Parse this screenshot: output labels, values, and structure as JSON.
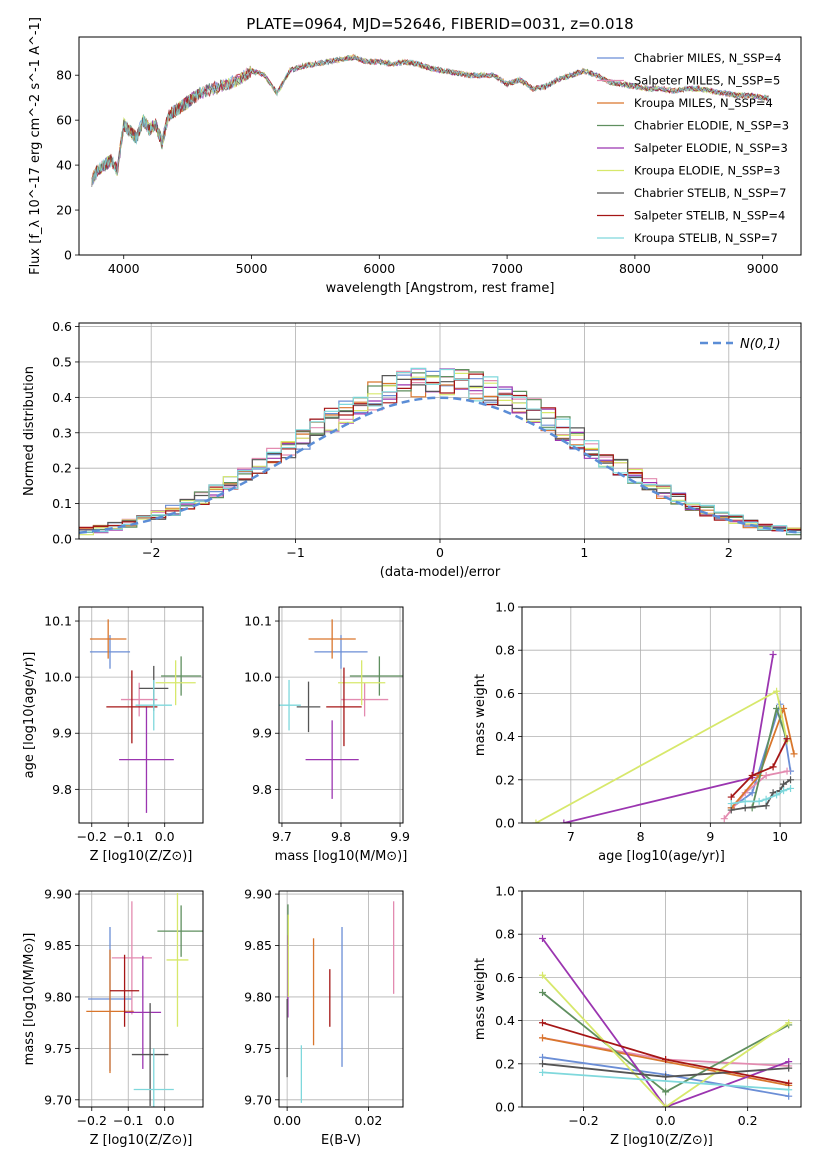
{
  "figure": {
    "title": "PLATE=0964, MJD=52646, FIBERID=0031, z=0.018"
  },
  "legend_entries": [
    "Chabrier MILES, N_SSP=4",
    "Salpeter MILES, N_SSP=5",
    "Kroupa MILES, N_SSP=4",
    "Chabrier ELODIE, N_SSP=3",
    "Salpeter ELODIE, N_SSP=3",
    "Kroupa ELODIE, N_SSP=3",
    "Chabrier STELIB, N_SSP=7",
    "Salpeter STELIB, N_SSP=4",
    "Kroupa STELIB, N_SSP=7"
  ],
  "colors": [
    "#6b8ed6",
    "#e38bb0",
    "#d9762c",
    "#5f8f5f",
    "#9b35b0",
    "#d7e86b",
    "#555555",
    "#a51616",
    "#7fd8dc"
  ],
  "chart_data": [
    {
      "id": "spectrum",
      "type": "line",
      "xlabel": "wavelength [Angstrom, rest frame]",
      "ylabel": "Flux [f_λ 10^-17 erg cm^-2 s^-1 A^-1]",
      "xlim": [
        3650,
        9300
      ],
      "ylim": [
        0,
        97
      ],
      "xticks": [
        4000,
        5000,
        6000,
        7000,
        8000,
        9000
      ],
      "yticks": [
        0,
        20,
        40,
        60,
        80
      ],
      "grid": false,
      "legend": "top-right",
      "x": [
        3750,
        3800,
        3850,
        3900,
        3950,
        4000,
        4050,
        4100,
        4150,
        4200,
        4250,
        4300,
        4350,
        4400,
        4450,
        4500,
        4550,
        4600,
        4700,
        4800,
        4900,
        5000,
        5100,
        5200,
        5300,
        5400,
        5500,
        5600,
        5700,
        5800,
        5900,
        6000,
        6100,
        6200,
        6300,
        6400,
        6500,
        6600,
        6700,
        6800,
        6900,
        7000,
        7100,
        7200,
        7300,
        7400,
        7500,
        7600,
        7700,
        7800,
        7900,
        8000,
        8100,
        8200,
        8300,
        8400,
        8500,
        8600,
        8700,
        8800,
        8900,
        9000,
        9050
      ],
      "y": [
        33,
        38,
        40,
        42,
        38,
        58,
        55,
        52,
        60,
        56,
        58,
        50,
        62,
        64,
        66,
        68,
        70,
        72,
        74,
        76,
        78,
        82,
        80,
        72,
        82,
        84,
        85,
        86,
        87,
        88,
        86,
        86,
        85,
        86,
        85,
        83,
        82,
        81,
        80,
        80,
        80,
        76,
        78,
        74,
        75,
        78,
        80,
        82,
        80,
        77,
        76,
        75,
        74,
        74,
        73,
        74,
        74,
        73,
        72,
        71,
        71,
        70,
        70
      ]
    },
    {
      "id": "residuals",
      "type": "histogram",
      "xlabel": "(data-model)/error",
      "ylabel": "Normed distribution",
      "xlim": [
        -2.5,
        2.5
      ],
      "ylim": [
        0,
        0.61
      ],
      "xticks": [
        -2,
        -1,
        0,
        1,
        2
      ],
      "yticks": [
        0.0,
        0.1,
        0.2,
        0.3,
        0.4,
        0.5,
        0.6
      ],
      "grid": true,
      "legend": "top-right",
      "series_name": "N(0,1)",
      "bin_width": 0.1,
      "bin_start": -2.5,
      "bin_count": 50
    },
    {
      "id": "age-vs-Z",
      "type": "errorbar",
      "xlabel": "Z [log10(Z/Z⊙)]",
      "ylabel": "age [log10(age/yr)]",
      "xlim": [
        -0.235,
        0.105
      ],
      "ylim": [
        9.74,
        10.125
      ],
      "xticks": [
        -0.2,
        -0.1,
        0.0
      ],
      "yticks": [
        9.8,
        9.9,
        10.0,
        10.1
      ],
      "grid": true,
      "points": [
        {
          "x": -0.15,
          "y": 10.045,
          "xerr": 0.055,
          "yerr": 0.03
        },
        {
          "x": -0.07,
          "y": 9.96,
          "xerr": 0.05,
          "yerr": 0.03
        },
        {
          "x": -0.155,
          "y": 10.068,
          "xerr": 0.05,
          "yerr": 0.035
        },
        {
          "x": 0.045,
          "y": 10.002,
          "xerr": 0.055,
          "yerr": 0.035
        },
        {
          "x": -0.05,
          "y": 9.853,
          "xerr": 0.075,
          "yerr": 0.095
        },
        {
          "x": 0.03,
          "y": 9.99,
          "xerr": 0.055,
          "yerr": 0.04
        },
        {
          "x": -0.03,
          "y": 9.98,
          "xerr": 0.04,
          "yerr": 0.04
        },
        {
          "x": -0.09,
          "y": 9.947,
          "xerr": 0.07,
          "yerr": 0.065
        },
        {
          "x": -0.03,
          "y": 9.95,
          "xerr": 0.05,
          "yerr": 0.045
        }
      ]
    },
    {
      "id": "age-vs-mass",
      "type": "errorbar",
      "xlabel": "mass [log10(M/M⊙)]",
      "ylabel": "",
      "xlim": [
        9.695,
        9.905
      ],
      "ylim": [
        9.74,
        10.125
      ],
      "xticks": [
        9.7,
        9.8,
        9.9
      ],
      "yticks": [
        9.8,
        9.9,
        10.0,
        10.1
      ],
      "grid": true,
      "points": [
        {
          "x": 9.8,
          "y": 10.045,
          "xerr": 0.045,
          "yerr": 0.03
        },
        {
          "x": 9.84,
          "y": 9.96,
          "xerr": 0.04,
          "yerr": 0.03
        },
        {
          "x": 9.785,
          "y": 10.068,
          "xerr": 0.04,
          "yerr": 0.035
        },
        {
          "x": 9.865,
          "y": 10.002,
          "xerr": 0.05,
          "yerr": 0.035
        },
        {
          "x": 9.785,
          "y": 9.853,
          "xerr": 0.045,
          "yerr": 0.07
        },
        {
          "x": 9.835,
          "y": 9.99,
          "xerr": 0.04,
          "yerr": 0.04
        },
        {
          "x": 9.745,
          "y": 9.947,
          "xerr": 0.02,
          "yerr": 0.045
        },
        {
          "x": 9.805,
          "y": 9.947,
          "xerr": 0.03,
          "yerr": 0.07
        },
        {
          "x": 9.712,
          "y": 9.95,
          "xerr": 0.02,
          "yerr": 0.045
        }
      ]
    },
    {
      "id": "weight-vs-age",
      "type": "line",
      "xlabel": "age [log10(age/yr)]",
      "ylabel": "mass weight",
      "xlim": [
        6.3,
        10.3
      ],
      "ylim": [
        0,
        1.0
      ],
      "xticks": [
        7,
        8,
        9,
        10
      ],
      "yticks": [
        0.0,
        0.2,
        0.4,
        0.6,
        0.8,
        1.0
      ],
      "grid": true,
      "series": [
        {
          "x": [
            9.3,
            9.6,
            10.0,
            10.15
          ],
          "y": [
            0.07,
            0.14,
            0.55,
            0.24
          ]
        },
        {
          "x": [
            9.2,
            9.5,
            9.8,
            10.1
          ],
          "y": [
            0.02,
            0.14,
            0.22,
            0.24
          ]
        },
        {
          "x": [
            9.3,
            9.7,
            10.05,
            10.2
          ],
          "y": [
            0.07,
            0.22,
            0.53,
            0.32
          ]
        },
        {
          "x": [
            9.6,
            9.95,
            10.1
          ],
          "y": [
            0.07,
            0.53,
            0.38
          ]
        },
        {
          "x": [
            6.9,
            9.6,
            9.9
          ],
          "y": [
            0.0,
            0.21,
            0.78
          ]
        },
        {
          "x": [
            6.5,
            9.95,
            10.1
          ],
          "y": [
            0.0,
            0.61,
            0.38
          ]
        },
        {
          "x": [
            9.3,
            9.5,
            9.8,
            9.9,
            10.0,
            10.05,
            10.15
          ],
          "y": [
            0.06,
            0.07,
            0.08,
            0.14,
            0.15,
            0.18,
            0.2
          ]
        },
        {
          "x": [
            9.3,
            9.6,
            9.9,
            10.1
          ],
          "y": [
            0.12,
            0.22,
            0.26,
            0.39
          ]
        },
        {
          "x": [
            9.3,
            9.5,
            9.7,
            9.8,
            9.95,
            10.05,
            10.15
          ],
          "y": [
            0.09,
            0.1,
            0.1,
            0.11,
            0.13,
            0.15,
            0.16
          ]
        }
      ]
    },
    {
      "id": "mass-vs-Z",
      "type": "errorbar",
      "xlabel": "Z [log10(Z/Z⊙)]",
      "ylabel": "mass [log10(M/M⊙)]",
      "xlim": [
        -0.235,
        0.105
      ],
      "ylim": [
        9.693,
        9.903
      ],
      "xticks": [
        -0.2,
        -0.1,
        0.0
      ],
      "yticks": [
        9.7,
        9.75,
        9.8,
        9.85,
        9.9
      ],
      "grid": true,
      "points": [
        {
          "x": -0.15,
          "y": 9.798,
          "xerr": 0.06,
          "yerr": 0.07
        },
        {
          "x": -0.09,
          "y": 9.838,
          "xerr": 0.055,
          "yerr": 0.055
        },
        {
          "x": -0.15,
          "y": 9.786,
          "xerr": 0.065,
          "yerr": 0.06
        },
        {
          "x": 0.045,
          "y": 9.864,
          "xerr": 0.065,
          "yerr": 0.025
        },
        {
          "x": -0.06,
          "y": 9.785,
          "xerr": 0.05,
          "yerr": 0.055
        },
        {
          "x": 0.035,
          "y": 9.836,
          "xerr": 0.03,
          "yerr": 0.065
        },
        {
          "x": -0.04,
          "y": 9.744,
          "xerr": 0.05,
          "yerr": 0.05
        },
        {
          "x": -0.11,
          "y": 9.806,
          "xerr": 0.04,
          "yerr": 0.035
        },
        {
          "x": -0.03,
          "y": 9.71,
          "xerr": 0.055,
          "yerr": 0.04
        }
      ]
    },
    {
      "id": "mass-vs-EBV",
      "type": "errorbar",
      "xlabel": "E(B-V)",
      "ylabel": "",
      "xlim": [
        -0.002,
        0.0285
      ],
      "ylim": [
        9.693,
        9.903
      ],
      "xticks": [
        0.0,
        0.02
      ],
      "yticks": [
        9.7,
        9.75,
        9.8,
        9.85,
        9.9
      ],
      "grid": true,
      "points": [
        {
          "x": 0.0135,
          "y": 9.8,
          "xerr": 0.0,
          "yerr": 0.068
        },
        {
          "x": 0.0262,
          "y": 9.848,
          "xerr": 0.0,
          "yerr": 0.045
        },
        {
          "x": 0.0065,
          "y": 9.805,
          "xerr": 0.0,
          "yerr": 0.052
        },
        {
          "x": 0.0002,
          "y": 9.87,
          "xerr": 0.0,
          "yerr": 0.02
        },
        {
          "x": 0.0002,
          "y": 9.82,
          "xerr": 0.0,
          "yerr": 0.04
        },
        {
          "x": 0.0003,
          "y": 9.84,
          "xerr": 0.0,
          "yerr": 0.04
        },
        {
          "x": 0.0,
          "y": 9.76,
          "xerr": 0.0,
          "yerr": 0.038
        },
        {
          "x": 0.0105,
          "y": 9.799,
          "xerr": 0.0,
          "yerr": 0.028
        },
        {
          "x": 0.0035,
          "y": 9.725,
          "xerr": 0.0,
          "yerr": 0.028
        }
      ]
    },
    {
      "id": "weight-vs-Z",
      "type": "line",
      "xlabel": "Z [log10(Z/Z⊙)]",
      "ylabel": "mass weight",
      "xlim": [
        -0.35,
        0.33
      ],
      "ylim": [
        0,
        1.0
      ],
      "xticks": [
        -0.2,
        0.0,
        0.2
      ],
      "yticks": [
        0.0,
        0.2,
        0.4,
        0.6,
        0.8,
        1.0
      ],
      "grid": true,
      "series": [
        {
          "x": [
            -0.3,
            0.0,
            0.3
          ],
          "y": [
            0.23,
            0.15,
            0.05
          ]
        },
        {
          "x": [
            -0.3,
            0.0,
            0.3
          ],
          "y": [
            0.32,
            0.22,
            0.19
          ]
        },
        {
          "x": [
            -0.3,
            0.3
          ],
          "y": [
            0.32,
            0.1
          ]
        },
        {
          "x": [
            -0.3,
            0.0,
            0.3
          ],
          "y": [
            0.53,
            0.07,
            0.38
          ]
        },
        {
          "x": [
            -0.3,
            0.0,
            0.3
          ],
          "y": [
            0.78,
            0.0,
            0.21
          ]
        },
        {
          "x": [
            -0.3,
            0.0,
            0.3
          ],
          "y": [
            0.61,
            0.0,
            0.39
          ]
        },
        {
          "x": [
            -0.3,
            0.0,
            0.3
          ],
          "y": [
            0.2,
            0.14,
            0.18
          ]
        },
        {
          "x": [
            -0.3,
            0.0,
            0.3
          ],
          "y": [
            0.39,
            0.22,
            0.11
          ]
        },
        {
          "x": [
            -0.3,
            0.3
          ],
          "y": [
            0.16,
            0.08
          ]
        }
      ]
    }
  ]
}
